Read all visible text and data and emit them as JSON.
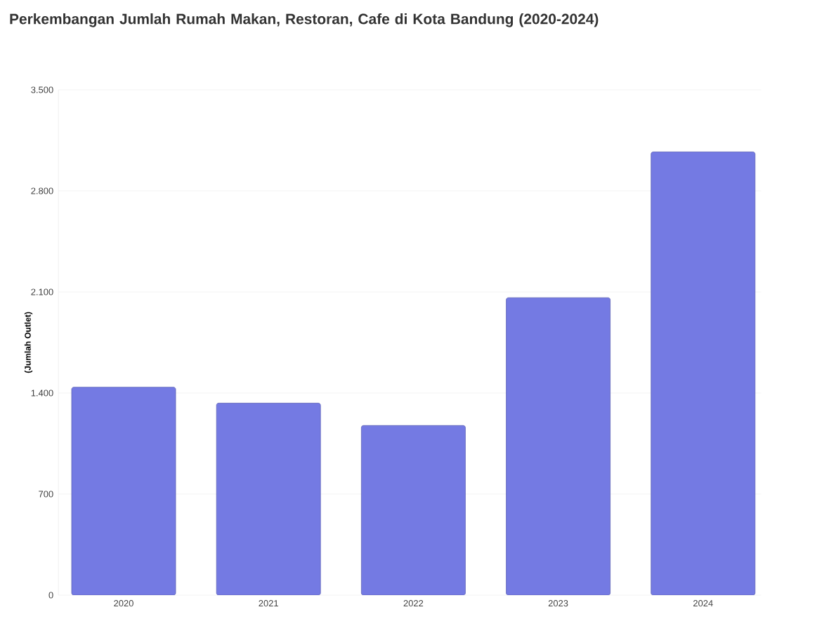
{
  "chart_data": {
    "type": "bar",
    "title": "Perkembangan Jumlah Rumah Makan, Restoran, Cafe di Kota Bandung (2020-2024)",
    "ylabel": "(Jumlah Outlet)",
    "categories": [
      "2020",
      "2021",
      "2022",
      "2023",
      "2024"
    ],
    "values": [
      1440,
      1330,
      1175,
      2060,
      3070
    ],
    "color": "#747ae3",
    "ylim": [
      0,
      3500
    ],
    "yticks": [
      0,
      700,
      {
        "value": 1400,
        "label": "1.400"
      },
      {
        "value": 2100,
        "label": "2.100"
      },
      {
        "value": 2800,
        "label": "2.800"
      },
      {
        "value": 3500,
        "label": "3.500"
      }
    ],
    "grid": "y"
  }
}
